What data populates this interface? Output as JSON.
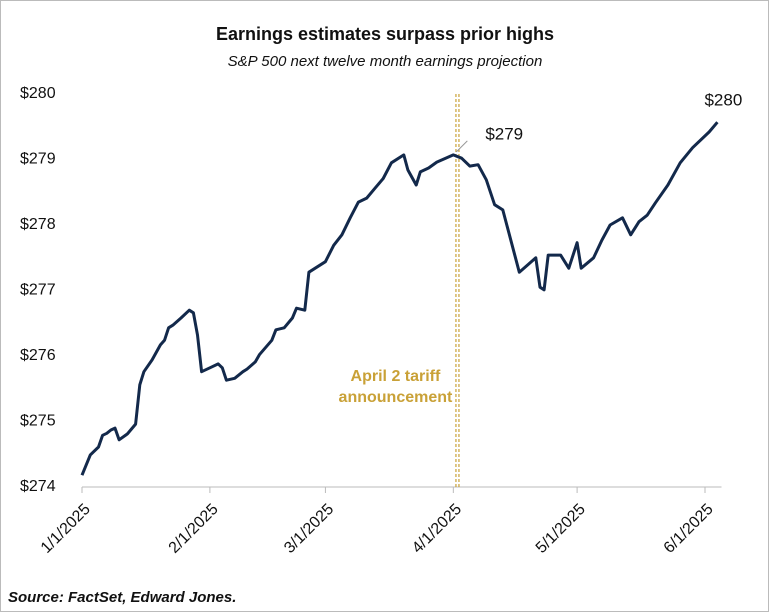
{
  "chart_data": {
    "type": "line",
    "title": "Earnings estimates surpass prior highs",
    "subtitle": "S&P 500 next twelve month earnings projection",
    "source": "Source: FactSet, Edward Jones.",
    "x": [
      "2025-01-01",
      "2025-01-03",
      "2025-01-05",
      "2025-01-06",
      "2025-01-07",
      "2025-01-08",
      "2025-01-09",
      "2025-01-10",
      "2025-01-12",
      "2025-01-14",
      "2025-01-15",
      "2025-01-16",
      "2025-01-18",
      "2025-01-20",
      "2025-01-21",
      "2025-01-22",
      "2025-01-23",
      "2025-01-25",
      "2025-01-27",
      "2025-01-28",
      "2025-01-29",
      "2025-01-30",
      "2025-02-01",
      "2025-02-03",
      "2025-02-04",
      "2025-02-05",
      "2025-02-07",
      "2025-02-09",
      "2025-02-10",
      "2025-02-12",
      "2025-02-13",
      "2025-02-16",
      "2025-02-17",
      "2025-02-19",
      "2025-02-21",
      "2025-02-22",
      "2025-02-24",
      "2025-02-25",
      "2025-03-01",
      "2025-03-03",
      "2025-03-05",
      "2025-03-07",
      "2025-03-09",
      "2025-03-11",
      "2025-03-13",
      "2025-03-15",
      "2025-03-17",
      "2025-03-20",
      "2025-03-21",
      "2025-03-23",
      "2025-03-24",
      "2025-03-26",
      "2025-03-28",
      "2025-04-01",
      "2025-04-03",
      "2025-04-05",
      "2025-04-07",
      "2025-04-09",
      "2025-04-11",
      "2025-04-13",
      "2025-04-17",
      "2025-04-19",
      "2025-04-21",
      "2025-04-22",
      "2025-04-23",
      "2025-04-24",
      "2025-04-27",
      "2025-04-29",
      "2025-05-01",
      "2025-05-02",
      "2025-05-05",
      "2025-05-07",
      "2025-05-09",
      "2025-05-12",
      "2025-05-14",
      "2025-05-16",
      "2025-05-18",
      "2025-05-20",
      "2025-05-23",
      "2025-05-26",
      "2025-05-29",
      "2025-06-02",
      "2025-06-04"
    ],
    "series": [
      {
        "name": "S&P 500 NTM earnings",
        "color": "#13294b",
        "values": [
          274.18,
          274.49,
          274.61,
          274.79,
          274.82,
          274.87,
          274.9,
          274.72,
          274.81,
          274.96,
          275.56,
          275.76,
          275.94,
          276.17,
          276.24,
          276.43,
          276.47,
          276.58,
          276.7,
          276.66,
          276.32,
          275.76,
          275.82,
          275.88,
          275.82,
          275.63,
          275.66,
          275.76,
          275.8,
          275.91,
          276.02,
          276.24,
          276.4,
          276.43,
          276.58,
          276.73,
          276.7,
          277.28,
          277.44,
          277.69,
          277.85,
          278.11,
          278.35,
          278.41,
          278.56,
          278.71,
          278.95,
          279.07,
          278.84,
          278.61,
          278.81,
          278.87,
          278.96,
          279.07,
          279.02,
          278.9,
          278.92,
          278.69,
          278.31,
          278.23,
          277.28,
          277.39,
          277.5,
          277.05,
          277.01,
          277.54,
          277.54,
          277.34,
          277.73,
          277.34,
          277.5,
          277.77,
          278.0,
          278.11,
          277.85,
          278.05,
          278.15,
          278.34,
          278.61,
          278.95,
          279.18,
          279.42,
          279.57
        ]
      }
    ],
    "xlim": [
      "2025-01-01",
      "2025-06-05"
    ],
    "xticks": [
      {
        "value": "2025-01-01",
        "label": "1/1/2025"
      },
      {
        "value": "2025-02-01",
        "label": "2/1/2025"
      },
      {
        "value": "2025-03-01",
        "label": "3/1/2025"
      },
      {
        "value": "2025-04-01",
        "label": "4/1/2025"
      },
      {
        "value": "2025-05-01",
        "label": "5/1/2025"
      },
      {
        "value": "2025-06-01",
        "label": "6/1/2025"
      }
    ],
    "ylim": [
      274,
      280
    ],
    "yticks": [
      {
        "value": 274,
        "label": "$274"
      },
      {
        "value": 275,
        "label": "$275"
      },
      {
        "value": 276,
        "label": "$276"
      },
      {
        "value": 277,
        "label": "$277"
      },
      {
        "value": 278,
        "label": "$278"
      },
      {
        "value": 279,
        "label": "$279"
      },
      {
        "value": 280,
        "label": "$280"
      }
    ],
    "point_labels": [
      {
        "x": "2025-04-01",
        "text": "$279"
      },
      {
        "x": "2025-06-04",
        "text": "$280"
      }
    ],
    "event": {
      "x": "2025-04-02",
      "color": "#c9a137",
      "text_lines": [
        "April 2 tariff",
        "announcement"
      ]
    }
  }
}
